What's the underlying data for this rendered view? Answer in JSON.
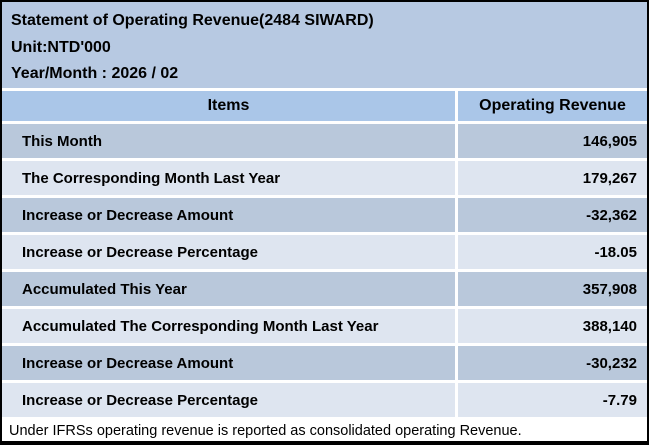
{
  "header": {
    "title": "Statement of Operating Revenue(2484 SIWARD)",
    "unit": "Unit:NTD'000",
    "year_month": "Year/Month : 2026 / 02"
  },
  "table": {
    "columns": {
      "items": "Items",
      "value": "Operating Revenue"
    },
    "rows": [
      {
        "item": "This Month",
        "value": "146,905"
      },
      {
        "item": "The Corresponding Month Last Year",
        "value": "179,267"
      },
      {
        "item": "Increase or Decrease Amount",
        "value": "-32,362"
      },
      {
        "item": "Increase or Decrease Percentage",
        "value": "-18.05"
      },
      {
        "item": "Accumulated This Year",
        "value": "357,908"
      },
      {
        "item": "Accumulated The Corresponding Month Last Year",
        "value": "388,140"
      },
      {
        "item": "Increase or Decrease Amount",
        "value": "-30,232"
      },
      {
        "item": "Increase or Decrease Percentage",
        "value": "-7.79"
      }
    ]
  },
  "footer": {
    "note": "Under IFRSs operating revenue is reported as consolidated operating Revenue."
  },
  "colors": {
    "title_bg": "#b7c9e2",
    "header_bg": "#aac6e8",
    "row_odd_bg": "#b9c8db",
    "row_even_bg": "#dee5f0",
    "border": "#000000",
    "text": "#000000",
    "footer_bg": "#ffffff"
  }
}
